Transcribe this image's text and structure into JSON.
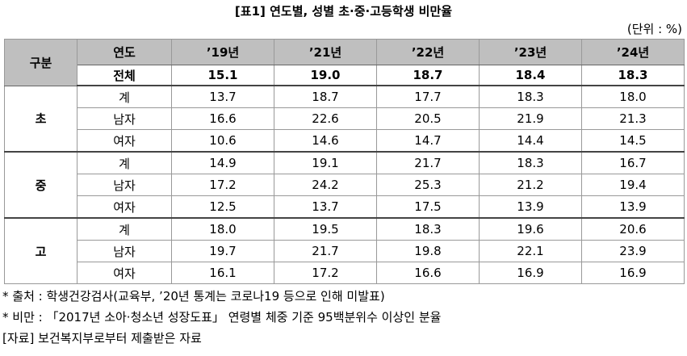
{
  "title": "[표1] 연도별, 성별 초·중·고등학생 비만율",
  "unit": "(단위 : %)",
  "table": {
    "corner": "구분",
    "header": [
      "연도",
      "’19년",
      "’21년",
      "’22년",
      "’23년",
      "’24년"
    ],
    "total": [
      "전체",
      "15.1",
      "19.0",
      "18.7",
      "18.4",
      "18.3"
    ],
    "groups": [
      {
        "name": "초",
        "rows": [
          [
            "계",
            "13.7",
            "18.7",
            "17.7",
            "18.3",
            "18.0"
          ],
          [
            "남자",
            "16.6",
            "22.6",
            "20.5",
            "21.9",
            "21.3"
          ],
          [
            "여자",
            "10.6",
            "14.6",
            "14.7",
            "14.4",
            "14.5"
          ]
        ]
      },
      {
        "name": "중",
        "rows": [
          [
            "계",
            "14.9",
            "19.1",
            "21.7",
            "18.3",
            "16.7"
          ],
          [
            "남자",
            "17.2",
            "24.2",
            "25.3",
            "21.2",
            "19.4"
          ],
          [
            "여자",
            "12.5",
            "13.7",
            "17.5",
            "13.9",
            "13.9"
          ]
        ]
      },
      {
        "name": "고",
        "rows": [
          [
            "계",
            "18.0",
            "19.5",
            "18.3",
            "19.6",
            "20.6"
          ],
          [
            "남자",
            "19.7",
            "21.7",
            "19.8",
            "22.1",
            "23.9"
          ],
          [
            "여자",
            "16.1",
            "17.2",
            "16.6",
            "16.9",
            "16.9"
          ]
        ]
      }
    ]
  },
  "notes": [
    "* 출처 : 학생건강검사(교육부, ’20년 통계는 코로나19 등으로 인해 미발표)",
    "* 비만 : 「2017년 소아·청소년 성장도표」 연령별 체중 기준 95백분위수 이상인 분율",
    "[자료] 보건복지부로부터 제출받은 자료"
  ]
}
